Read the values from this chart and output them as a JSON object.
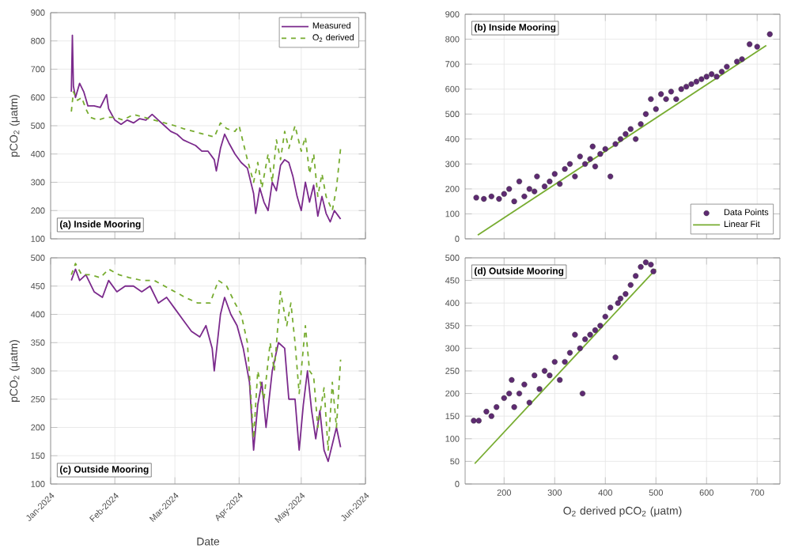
{
  "chart_data": [
    {
      "type": "line",
      "ylabel": "pCO$_{2}$ (μatm)",
      "annotations": [
        "(a) Inside Mooring"
      ],
      "xlim": [
        "2024-01-01",
        "2024-06-01"
      ],
      "xticks": [
        {
          "value": "2024-01-01",
          "label": null
        },
        {
          "value": "2024-02-01",
          "label": null
        },
        {
          "value": "2024-03-01",
          "label": null
        },
        {
          "value": "2024-04-01",
          "label": null
        },
        {
          "value": "2024-05-01",
          "label": null
        },
        {
          "value": "2024-06-01",
          "label": null
        }
      ],
      "ylim": [
        100,
        900
      ],
      "yticks": [
        100,
        200,
        300,
        400,
        500,
        600,
        700,
        800,
        900
      ],
      "grid": true,
      "legend": "top right",
      "tick_labels": "y",
      "series": [
        {
          "name": "Measured",
          "color": "#7b2a8c",
          "line_style": "solid",
          "x": [
            "2024-01-11",
            "2024-01-11T12:00",
            "2024-01-12",
            "2024-01-13",
            "2024-01-15",
            "2024-01-17",
            "2024-01-19",
            "2024-01-22",
            "2024-01-25",
            "2024-01-28",
            "2024-01-29",
            "2024-02-01",
            "2024-02-04",
            "2024-02-07",
            "2024-02-10",
            "2024-02-13",
            "2024-02-16",
            "2024-02-19",
            "2024-02-22",
            "2024-02-25",
            "2024-02-28",
            "2024-03-02",
            "2024-03-05",
            "2024-03-08",
            "2024-03-11",
            "2024-03-14",
            "2024-03-17",
            "2024-03-20",
            "2024-03-21",
            "2024-03-23",
            "2024-03-25",
            "2024-03-27",
            "2024-03-30",
            "2024-04-02",
            "2024-04-05",
            "2024-04-08",
            "2024-04-09",
            "2024-04-11",
            "2024-04-13",
            "2024-04-15",
            "2024-04-17",
            "2024-04-19",
            "2024-04-21",
            "2024-04-23",
            "2024-04-25",
            "2024-04-27",
            "2024-04-29",
            "2024-05-01",
            "2024-05-03",
            "2024-05-05",
            "2024-05-07",
            "2024-05-09",
            "2024-05-11",
            "2024-05-13",
            "2024-05-15",
            "2024-05-17",
            "2024-05-19",
            "2024-05-20"
          ],
          "values": [
            620,
            820,
            640,
            600,
            650,
            620,
            570,
            570,
            565,
            610,
            560,
            520,
            505,
            520,
            510,
            525,
            520,
            540,
            520,
            500,
            480,
            470,
            450,
            440,
            430,
            410,
            410,
            380,
            340,
            420,
            470,
            440,
            400,
            370,
            350,
            260,
            190,
            280,
            230,
            200,
            300,
            270,
            360,
            380,
            370,
            320,
            250,
            200,
            300,
            230,
            290,
            180,
            250,
            190,
            160,
            200,
            180,
            170
          ]
        },
        {
          "name": "O$_{2}$ derived",
          "color": "#77ac30",
          "line_style": "dashed",
          "x": [
            "2024-01-11",
            "2024-01-12",
            "2024-01-14",
            "2024-01-16",
            "2024-01-18",
            "2024-01-20",
            "2024-01-24",
            "2024-01-28",
            "2024-02-01",
            "2024-02-05",
            "2024-02-10",
            "2024-02-15",
            "2024-02-20",
            "2024-02-25",
            "2024-03-01",
            "2024-03-05",
            "2024-03-10",
            "2024-03-15",
            "2024-03-20",
            "2024-03-23",
            "2024-03-26",
            "2024-03-30",
            "2024-04-01",
            "2024-04-03",
            "2024-04-05",
            "2024-04-08",
            "2024-04-10",
            "2024-04-12",
            "2024-04-15",
            "2024-04-17",
            "2024-04-19",
            "2024-04-21",
            "2024-04-23",
            "2024-04-25",
            "2024-04-28",
            "2024-05-01",
            "2024-05-03",
            "2024-05-05",
            "2024-05-07",
            "2024-05-09",
            "2024-05-11",
            "2024-05-13",
            "2024-05-16",
            "2024-05-18",
            "2024-05-20"
          ],
          "values": [
            550,
            620,
            590,
            600,
            560,
            530,
            520,
            530,
            530,
            520,
            540,
            530,
            520,
            510,
            500,
            490,
            480,
            470,
            460,
            510,
            490,
            480,
            500,
            440,
            380,
            300,
            370,
            280,
            400,
            300,
            450,
            380,
            480,
            420,
            500,
            410,
            460,
            330,
            400,
            250,
            330,
            250,
            200,
            280,
            420
          ]
        }
      ]
    },
    {
      "type": "scatter",
      "annotations": [
        "(b) Inside Mooring"
      ],
      "xlim": [
        123,
        745
      ],
      "xticks": [
        200,
        300,
        400,
        500,
        600,
        700
      ],
      "ylim": [
        0,
        900
      ],
      "yticks": [
        0,
        100,
        200,
        300,
        400,
        500,
        600,
        700,
        800,
        900
      ],
      "grid": true,
      "legend": "bottom right",
      "tick_labels": "y",
      "series": [
        {
          "name": "Data Points",
          "color": "#5e2a72",
          "marker": "circle",
          "x": [
            145,
            160,
            175,
            190,
            200,
            210,
            220,
            230,
            240,
            250,
            260,
            265,
            280,
            290,
            300,
            310,
            320,
            330,
            340,
            350,
            360,
            370,
            375,
            380,
            390,
            400,
            410,
            420,
            430,
            440,
            450,
            460,
            470,
            480,
            490,
            500,
            510,
            520,
            530,
            540,
            550,
            560,
            570,
            580,
            590,
            600,
            610,
            620,
            630,
            640,
            660,
            670,
            685,
            700,
            725
          ],
          "values": [
            165,
            160,
            170,
            160,
            180,
            200,
            150,
            230,
            170,
            200,
            190,
            250,
            210,
            230,
            260,
            220,
            280,
            300,
            250,
            330,
            300,
            320,
            370,
            290,
            340,
            360,
            250,
            380,
            400,
            420,
            440,
            400,
            460,
            500,
            560,
            520,
            580,
            560,
            590,
            560,
            600,
            610,
            620,
            630,
            640,
            650,
            660,
            650,
            670,
            690,
            710,
            720,
            780,
            770,
            820
          ]
        },
        {
          "name": "Linear Fit",
          "type": "line",
          "marker": "none",
          "color": "#77ac30",
          "x": [
            148,
            718
          ],
          "values": [
            15,
            775
          ]
        }
      ]
    },
    {
      "type": "line",
      "xlabel": "Date",
      "ylabel": "pCO$_{2}$ (μatm)",
      "annotations": [
        "(c) Outside Mooring"
      ],
      "xlim": [
        "2024-01-01",
        "2024-06-01"
      ],
      "xticks": [
        {
          "value": "2024-01-01",
          "label": "Jan-2024"
        },
        {
          "value": "2024-02-01",
          "label": "Feb-2024"
        },
        {
          "value": "2024-03-01",
          "label": "Mar-2024"
        },
        {
          "value": "2024-04-01",
          "label": "Apr-2024"
        },
        {
          "value": "2024-05-01",
          "label": "May-2024"
        },
        {
          "value": "2024-06-01",
          "label": "Jun-2024"
        }
      ],
      "ylim": [
        100,
        500
      ],
      "yticks": [
        100,
        150,
        200,
        250,
        300,
        350,
        400,
        450,
        500
      ],
      "grid": true,
      "series": [
        {
          "color": "#7b2a8c",
          "line_style": "solid",
          "x": [
            "2024-01-11",
            "2024-01-13",
            "2024-01-15",
            "2024-01-18",
            "2024-01-22",
            "2024-01-26",
            "2024-01-29",
            "2024-02-02",
            "2024-02-06",
            "2024-02-10",
            "2024-02-14",
            "2024-02-18",
            "2024-02-22",
            "2024-02-26",
            "2024-03-01",
            "2024-03-05",
            "2024-03-09",
            "2024-03-13",
            "2024-03-16",
            "2024-03-19",
            "2024-03-20",
            "2024-03-23",
            "2024-03-25",
            "2024-03-28",
            "2024-03-31",
            "2024-04-03",
            "2024-04-06",
            "2024-04-08",
            "2024-04-10",
            "2024-04-12",
            "2024-04-14",
            "2024-04-17",
            "2024-04-20",
            "2024-04-23",
            "2024-04-25",
            "2024-04-28",
            "2024-04-30",
            "2024-05-02",
            "2024-05-04",
            "2024-05-06",
            "2024-05-08",
            "2024-05-10",
            "2024-05-12",
            "2024-05-14",
            "2024-05-16",
            "2024-05-18",
            "2024-05-20"
          ],
          "values": [
            460,
            480,
            460,
            470,
            440,
            430,
            460,
            440,
            450,
            450,
            440,
            450,
            420,
            430,
            410,
            390,
            370,
            360,
            380,
            340,
            300,
            400,
            430,
            400,
            380,
            340,
            280,
            160,
            240,
            280,
            200,
            300,
            350,
            340,
            250,
            250,
            160,
            240,
            300,
            230,
            180,
            230,
            160,
            140,
            170,
            200,
            165
          ]
        },
        {
          "color": "#77ac30",
          "line_style": "dashed",
          "x": [
            "2024-01-11",
            "2024-01-13",
            "2024-01-16",
            "2024-01-20",
            "2024-01-25",
            "2024-01-29",
            "2024-02-03",
            "2024-02-08",
            "2024-02-14",
            "2024-02-20",
            "2024-02-25",
            "2024-03-01",
            "2024-03-06",
            "2024-03-12",
            "2024-03-18",
            "2024-03-22",
            "2024-03-26",
            "2024-03-30",
            "2024-04-02",
            "2024-04-05",
            "2024-04-08",
            "2024-04-10",
            "2024-04-13",
            "2024-04-16",
            "2024-04-18",
            "2024-04-21",
            "2024-04-24",
            "2024-04-26",
            "2024-04-28",
            "2024-04-30",
            "2024-05-03",
            "2024-05-05",
            "2024-05-07",
            "2024-05-09",
            "2024-05-12",
            "2024-05-14",
            "2024-05-16",
            "2024-05-18",
            "2024-05-20"
          ],
          "values": [
            470,
            490,
            470,
            470,
            465,
            480,
            470,
            465,
            460,
            460,
            450,
            440,
            430,
            420,
            420,
            460,
            450,
            420,
            400,
            350,
            180,
            300,
            250,
            350,
            300,
            440,
            380,
            420,
            350,
            260,
            380,
            300,
            290,
            200,
            270,
            160,
            280,
            200,
            320
          ]
        }
      ]
    },
    {
      "type": "scatter",
      "xlabel": "O$_{2}$ derived pCO$_{2}$ (μatm)",
      "annotations": [
        "(d) Outside Mooring"
      ],
      "xlim": [
        123,
        745
      ],
      "xticks": [
        200,
        300,
        400,
        500,
        600,
        700
      ],
      "ylim": [
        0,
        500
      ],
      "yticks": [
        0,
        50,
        100,
        150,
        200,
        250,
        300,
        350,
        400,
        450,
        500
      ],
      "grid": true,
      "series": [
        {
          "color": "#5e2a72",
          "marker": "circle",
          "x": [
            140,
            150,
            165,
            175,
            185,
            200,
            210,
            215,
            220,
            230,
            240,
            250,
            260,
            270,
            280,
            290,
            300,
            310,
            320,
            330,
            340,
            350,
            355,
            360,
            370,
            380,
            390,
            400,
            410,
            420,
            425,
            430,
            440,
            450,
            460,
            470,
            480,
            490,
            495
          ],
          "values": [
            140,
            140,
            160,
            150,
            170,
            190,
            200,
            230,
            170,
            200,
            220,
            180,
            240,
            210,
            250,
            240,
            270,
            230,
            270,
            290,
            330,
            300,
            200,
            320,
            330,
            340,
            350,
            370,
            390,
            280,
            400,
            410,
            420,
            440,
            460,
            480,
            490,
            485,
            470
          ]
        },
        {
          "type": "line",
          "marker": "none",
          "color": "#77ac30",
          "x": [
            142,
            500
          ],
          "values": [
            45,
            475
          ]
        }
      ]
    }
  ]
}
